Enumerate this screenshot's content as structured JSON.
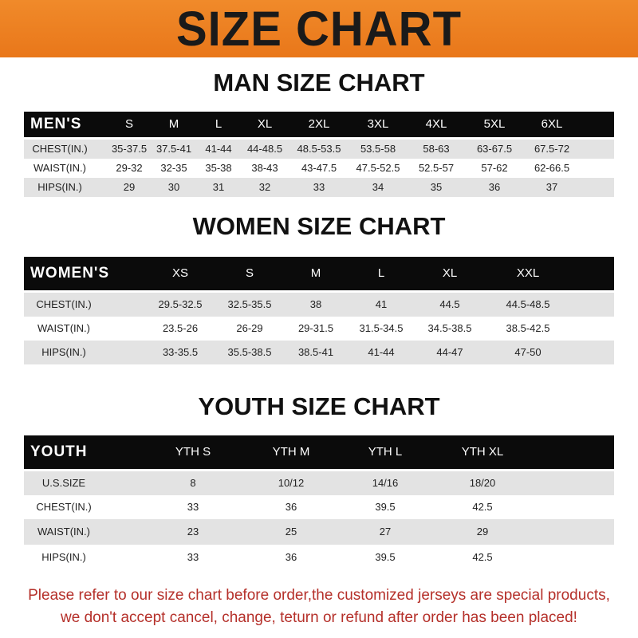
{
  "banner_title": "SIZE CHART",
  "colors": {
    "banner": "#ef8424",
    "header_row": "#0b0b0b",
    "stripe": "#e3e3e3",
    "notice": "#b5302a"
  },
  "men": {
    "title": "MAN SIZE CHART",
    "columns": [
      "MEN'S",
      "S",
      "M",
      "L",
      "XL",
      "2XL",
      "3XL",
      "4XL",
      "5XL",
      "6XL"
    ],
    "rows": [
      [
        "CHEST(IN.)",
        "35-37.5",
        "37.5-41",
        "41-44",
        "44-48.5",
        "48.5-53.5",
        "53.5-58",
        "58-63",
        "63-67.5",
        "67.5-72"
      ],
      [
        "WAIST(IN.)",
        "29-32",
        "32-35",
        "35-38",
        "38-43",
        "43-47.5",
        "47.5-52.5",
        "52.5-57",
        "57-62",
        "62-66.5"
      ],
      [
        "HIPS(IN.)",
        "29",
        "30",
        "31",
        "32",
        "33",
        "34",
        "35",
        "36",
        "37"
      ]
    ]
  },
  "women": {
    "title": "WOMEN SIZE CHART",
    "columns": [
      "WOMEN'S",
      "XS",
      "S",
      "M",
      "L",
      "XL",
      "XXL"
    ],
    "rows": [
      [
        "CHEST(IN.)",
        "29.5-32.5",
        "32.5-35.5",
        "38",
        "41",
        "44.5",
        "44.5-48.5"
      ],
      [
        "WAIST(IN.)",
        "23.5-26",
        "26-29",
        "29-31.5",
        "31.5-34.5",
        "34.5-38.5",
        "38.5-42.5"
      ],
      [
        "HIPS(IN.)",
        "33-35.5",
        "35.5-38.5",
        "38.5-41",
        "41-44",
        "44-47",
        "47-50"
      ]
    ]
  },
  "youth": {
    "title": "YOUTH SIZE CHART",
    "columns": [
      "YOUTH",
      "YTH S",
      "YTH M",
      "YTH L",
      "YTH XL"
    ],
    "rows": [
      [
        "U.S.SIZE",
        "8",
        "10/12",
        "14/16",
        "18/20"
      ],
      [
        "CHEST(IN.)",
        "33",
        "36",
        "39.5",
        "42.5"
      ],
      [
        "WAIST(IN.)",
        "23",
        "25",
        "27",
        "29"
      ],
      [
        "HIPS(IN.)",
        "33",
        "36",
        "39.5",
        "42.5"
      ]
    ]
  },
  "notice": {
    "line1": "Please refer to our size chart before order,the customized jerseys are special products,",
    "line2": "we don't accept cancel, change, teturn or refund after order has been placed!"
  }
}
